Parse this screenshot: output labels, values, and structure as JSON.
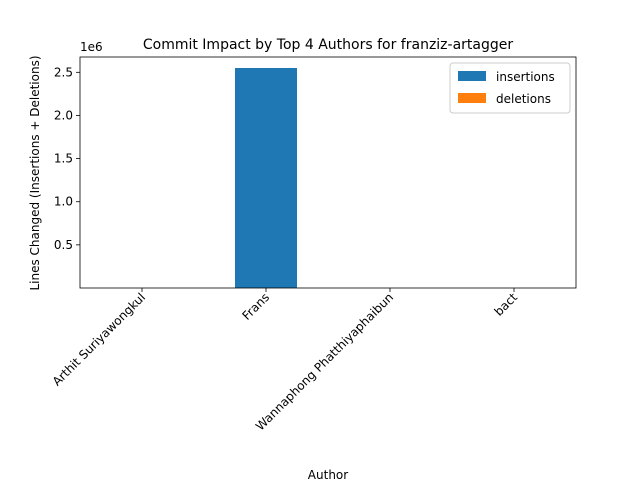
{
  "chart_data": {
    "type": "bar",
    "title": "Commit Impact by Top 4 Authors for franziz-artagger",
    "xlabel": "Author",
    "ylabel": "Lines Changed (Insertions + Deletions)",
    "y_offset_label": "1e6",
    "categories": [
      "Arthit Suriyawongkul",
      "Frans",
      "Wannaphong Phatthiyaphaibun",
      "bact"
    ],
    "series": [
      {
        "name": "insertions",
        "color": "#1f77b4",
        "values": [
          0,
          2550000,
          0,
          0
        ]
      },
      {
        "name": "deletions",
        "color": "#ff7f0e",
        "values": [
          0,
          0,
          0,
          0
        ]
      }
    ],
    "yticks": [
      {
        "value": 500000,
        "label": "0.5"
      },
      {
        "value": 1000000,
        "label": "1.0"
      },
      {
        "value": 1500000,
        "label": "1.5"
      },
      {
        "value": 2000000,
        "label": "2.0"
      },
      {
        "value": 2500000,
        "label": "2.5"
      }
    ],
    "ylim": [
      0,
      2677500
    ],
    "grid": false,
    "legend_position": "top-right",
    "stacked": true
  }
}
